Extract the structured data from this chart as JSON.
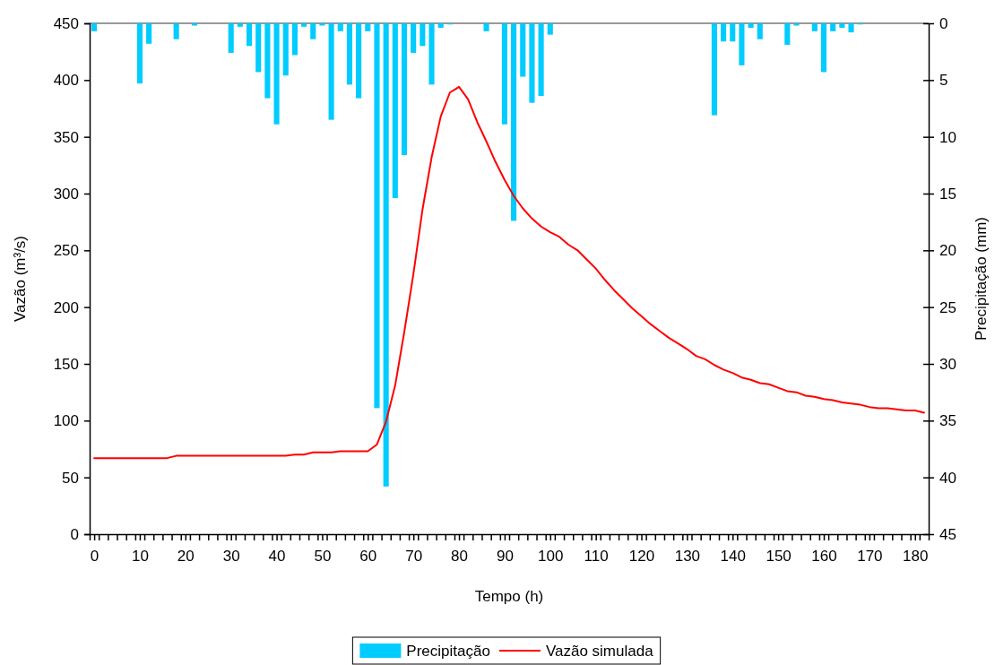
{
  "chart_data": {
    "type": "line",
    "xlabel": "Tempo (h)",
    "ylabel": "Vazão (m³/s)",
    "y2label": "Precipitação (mm)",
    "legend": "bottom",
    "grid": false,
    "xlim": [
      -1,
      183
    ],
    "xticks": [
      0,
      10,
      20,
      30,
      40,
      50,
      60,
      70,
      80,
      90,
      100,
      110,
      120,
      130,
      140,
      150,
      160,
      170,
      180,
      {
        "value": 1,
        "label": null
      },
      {
        "value": 3,
        "label": null
      },
      {
        "value": 5,
        "label": null
      },
      {
        "value": 7,
        "label": null
      },
      {
        "value": 9,
        "label": null
      },
      {
        "value": 11,
        "label": null
      },
      {
        "value": 13,
        "label": null
      },
      {
        "value": 15,
        "label": null
      },
      {
        "value": 17,
        "label": null
      },
      {
        "value": 19,
        "label": null
      },
      {
        "value": 21,
        "label": null
      },
      {
        "value": 23,
        "label": null
      },
      {
        "value": 25,
        "label": null
      },
      {
        "value": 27,
        "label": null
      },
      {
        "value": 29,
        "label": null
      },
      {
        "value": 31,
        "label": null
      },
      {
        "value": 33,
        "label": null
      },
      {
        "value": 35,
        "label": null
      },
      {
        "value": 37,
        "label": null
      },
      {
        "value": 39,
        "label": null
      },
      {
        "value": 41,
        "label": null
      },
      {
        "value": 43,
        "label": null
      },
      {
        "value": 45,
        "label": null
      },
      {
        "value": 47,
        "label": null
      },
      {
        "value": 49,
        "label": null
      },
      {
        "value": 51,
        "label": null
      },
      {
        "value": 53,
        "label": null
      },
      {
        "value": 55,
        "label": null
      },
      {
        "value": 57,
        "label": null
      },
      {
        "value": 59,
        "label": null
      },
      {
        "value": 61,
        "label": null
      },
      {
        "value": 63,
        "label": null
      },
      {
        "value": 65,
        "label": null
      },
      {
        "value": 67,
        "label": null
      },
      {
        "value": 69,
        "label": null
      },
      {
        "value": 71,
        "label": null
      },
      {
        "value": 73,
        "label": null
      },
      {
        "value": 75,
        "label": null
      },
      {
        "value": 77,
        "label": null
      },
      {
        "value": 79,
        "label": null
      },
      {
        "value": 81,
        "label": null
      },
      {
        "value": 83,
        "label": null
      },
      {
        "value": 85,
        "label": null
      },
      {
        "value": 87,
        "label": null
      },
      {
        "value": 89,
        "label": null
      },
      {
        "value": 91,
        "label": null
      },
      {
        "value": 93,
        "label": null
      },
      {
        "value": 95,
        "label": null
      },
      {
        "value": 97,
        "label": null
      },
      {
        "value": 99,
        "label": null
      },
      {
        "value": 101,
        "label": null
      },
      {
        "value": 103,
        "label": null
      },
      {
        "value": 105,
        "label": null
      },
      {
        "value": 107,
        "label": null
      },
      {
        "value": 109,
        "label": null
      },
      {
        "value": 111,
        "label": null
      },
      {
        "value": 113,
        "label": null
      },
      {
        "value": 115,
        "label": null
      },
      {
        "value": 117,
        "label": null
      },
      {
        "value": 119,
        "label": null
      },
      {
        "value": 121,
        "label": null
      },
      {
        "value": 123,
        "label": null
      },
      {
        "value": 125,
        "label": null
      },
      {
        "value": 127,
        "label": null
      },
      {
        "value": 129,
        "label": null
      },
      {
        "value": 131,
        "label": null
      },
      {
        "value": 133,
        "label": null
      },
      {
        "value": 135,
        "label": null
      },
      {
        "value": 137,
        "label": null
      },
      {
        "value": 139,
        "label": null
      },
      {
        "value": 141,
        "label": null
      },
      {
        "value": 143,
        "label": null
      },
      {
        "value": 145,
        "label": null
      },
      {
        "value": 147,
        "label": null
      },
      {
        "value": 149,
        "label": null
      },
      {
        "value": 151,
        "label": null
      },
      {
        "value": 153,
        "label": null
      },
      {
        "value": 155,
        "label": null
      },
      {
        "value": 157,
        "label": null
      },
      {
        "value": 159,
        "label": null
      },
      {
        "value": 161,
        "label": null
      },
      {
        "value": 163,
        "label": null
      },
      {
        "value": 165,
        "label": null
      },
      {
        "value": 167,
        "label": null
      },
      {
        "value": 169,
        "label": null
      },
      {
        "value": 171,
        "label": null
      },
      {
        "value": 173,
        "label": null
      },
      {
        "value": 175,
        "label": null
      },
      {
        "value": 177,
        "label": null
      },
      {
        "value": 179,
        "label": null
      },
      {
        "value": 181,
        "label": null
      }
    ],
    "ylim": [
      0,
      450
    ],
    "yticks": [
      0,
      50,
      100,
      150,
      200,
      250,
      300,
      350,
      400,
      450
    ],
    "y2lim": [
      45,
      0
    ],
    "y2ticks": [
      0,
      5,
      10,
      15,
      20,
      25,
      30,
      35,
      40,
      45
    ],
    "x": [
      0,
      2,
      4,
      6,
      8,
      10,
      12,
      14,
      16,
      18,
      20,
      22,
      24,
      26,
      28,
      30,
      32,
      34,
      36,
      38,
      40,
      42,
      44,
      46,
      48,
      50,
      52,
      54,
      56,
      58,
      60,
      62,
      64,
      66,
      68,
      70,
      72,
      74,
      76,
      78,
      80,
      82,
      84,
      86,
      88,
      90,
      92,
      94,
      96,
      98,
      100,
      102,
      104,
      106,
      108,
      110,
      112,
      114,
      116,
      118,
      120,
      122,
      124,
      126,
      128,
      130,
      132,
      134,
      136,
      138,
      140,
      142,
      144,
      146,
      148,
      150,
      152,
      154,
      156,
      158,
      160,
      162,
      164,
      166,
      168,
      170,
      172,
      174,
      176,
      178,
      180,
      182
    ],
    "series": [
      {
        "name": "Precipitação",
        "type": "bar",
        "axis": "y2",
        "color": "#00ccff",
        "values": [
          0.7,
          null,
          null,
          null,
          null,
          5.3,
          1.8,
          null,
          null,
          1.4,
          null,
          0.2,
          null,
          null,
          null,
          2.6,
          0.3,
          2.0,
          4.3,
          6.6,
          8.9,
          4.6,
          2.8,
          0.3,
          1.4,
          0.2,
          8.5,
          0.7,
          5.4,
          6.6,
          0.7,
          33.9,
          40.8,
          15.4,
          11.6,
          2.6,
          2.0,
          5.4,
          0.4,
          0.1,
          null,
          null,
          null,
          0.7,
          null,
          8.9,
          17.4,
          4.7,
          7.0,
          6.4,
          1.0,
          null,
          null,
          null,
          null,
          null,
          null,
          null,
          null,
          null,
          null,
          null,
          null,
          null,
          null,
          null,
          null,
          null,
          8.1,
          1.6,
          1.6,
          3.7,
          0.4,
          1.4,
          null,
          null,
          1.9,
          0.2,
          null,
          0.7,
          4.3,
          0.7,
          0.4,
          0.8,
          0.1,
          null,
          null,
          null,
          null,
          null,
          null,
          null
        ]
      },
      {
        "name": "Vazão simulada",
        "color": "#ff0000",
        "values": [
          67,
          67,
          67,
          67,
          67,
          67,
          67,
          67,
          67,
          69,
          69,
          69,
          69,
          69,
          69,
          69,
          69,
          69,
          69,
          69,
          69,
          69,
          70,
          70,
          72,
          72,
          72,
          73,
          73,
          73,
          73,
          79,
          99,
          131,
          178,
          229,
          286,
          332,
          368,
          389,
          394,
          383,
          363,
          346,
          328,
          312,
          298,
          287,
          278,
          271,
          266,
          262,
          255,
          250,
          242,
          234,
          224,
          215,
          207,
          199,
          192,
          185,
          179,
          173,
          168,
          163,
          157,
          154,
          149,
          145,
          142,
          138,
          136,
          133,
          132,
          129,
          126,
          125,
          122,
          121,
          119,
          118,
          116,
          115,
          114,
          112,
          111,
          111,
          110,
          109,
          109,
          107
        ]
      }
    ]
  }
}
